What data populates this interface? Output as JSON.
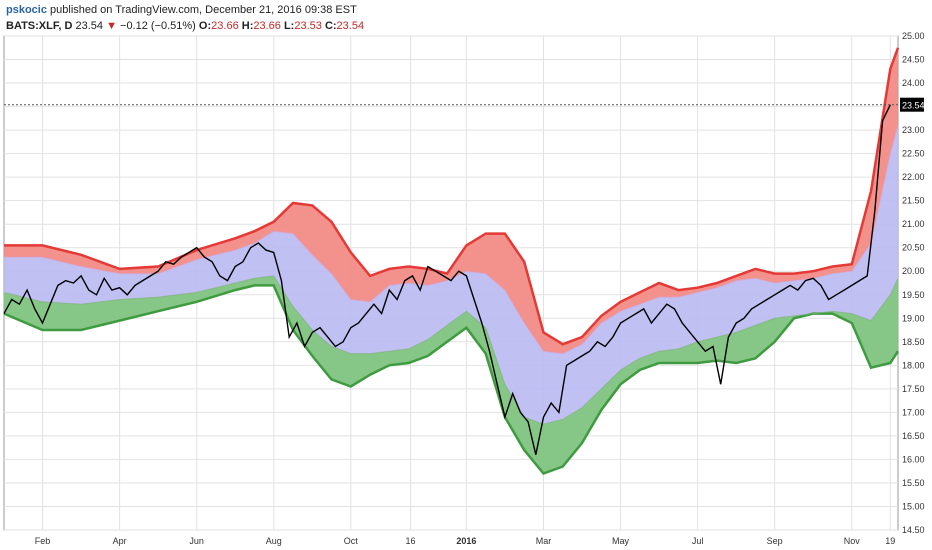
{
  "header": {
    "author": "pskocic",
    "published_text": "published on TradingView.com, December 21, 2016 09:38 EST",
    "symbol": "BATS:XLF, D",
    "last": "23.54",
    "change": "−0.12 (−0.51%)",
    "open_label": "O:",
    "open": "23.66",
    "high_label": "H:",
    "high": "23.66",
    "low_label": "L:",
    "low": "23.53",
    "close_label": "C:",
    "close": "23.54"
  },
  "colors": {
    "upper_band": "#e53935",
    "upper_fill": "#f28b87",
    "middle_fill": "#b9b9f2",
    "lower_fill": "#7fc37f",
    "lower_band": "#3f9b3f",
    "price": "#000000",
    "price_label_bg": "#000000"
  },
  "chart_data": {
    "type": "line",
    "title": "",
    "xlabel": "",
    "ylabel": "",
    "ylim": [
      14.5,
      25.0
    ],
    "yticks": [
      14.5,
      15.0,
      15.5,
      16.0,
      16.5,
      17.0,
      17.5,
      18.0,
      18.5,
      19.0,
      19.5,
      20.0,
      20.5,
      21.0,
      21.5,
      22.0,
      22.5,
      23.0,
      23.5,
      24.0,
      24.5,
      25.0
    ],
    "ytick_labels": [
      "14.50",
      "15.00",
      "15.50",
      "16.00",
      "16.50",
      "17.00",
      "17.50",
      "18.00",
      "18.50",
      "19.00",
      "19.50",
      "20.00",
      "20.50",
      "21.00",
      "21.50",
      "22.00",
      "22.50",
      "23.00",
      "23.50",
      "24.00",
      "24.50",
      "25.00"
    ],
    "x_range": [
      0,
      23.2
    ],
    "xticks": [
      {
        "x": 1.0,
        "label": "Feb",
        "bold": false
      },
      {
        "x": 3.0,
        "label": "Apr",
        "bold": false
      },
      {
        "x": 5.0,
        "label": "Jun",
        "bold": false
      },
      {
        "x": 7.0,
        "label": "Aug",
        "bold": false
      },
      {
        "x": 9.0,
        "label": "Oct",
        "bold": false
      },
      {
        "x": 10.55,
        "label": "16",
        "bold": false
      },
      {
        "x": 12.0,
        "label": "2016",
        "bold": true
      },
      {
        "x": 14.0,
        "label": "Mar",
        "bold": false
      },
      {
        "x": 16.0,
        "label": "May",
        "bold": false
      },
      {
        "x": 18.0,
        "label": "Jul",
        "bold": false
      },
      {
        "x": 20.0,
        "label": "Sep",
        "bold": false
      },
      {
        "x": 22.0,
        "label": "Nov",
        "bold": false
      },
      {
        "x": 23.0,
        "label": "19",
        "bold": false
      }
    ],
    "last_price": 23.54,
    "last_price_label": "23.54",
    "series": [
      {
        "key": "upper_outer",
        "x": [
          0,
          1,
          2,
          3,
          4,
          5,
          6,
          6.5,
          7,
          7.5,
          8,
          8.5,
          9,
          9.5,
          10,
          10.5,
          11,
          11.5,
          12,
          12.5,
          13,
          13.5,
          14,
          14.5,
          15,
          15.5,
          16,
          16.5,
          17,
          17.5,
          18,
          18.5,
          19,
          19.5,
          20,
          20.5,
          21,
          21.5,
          22,
          22.5,
          23,
          23.2
        ],
        "y": [
          20.55,
          20.55,
          20.35,
          20.05,
          20.1,
          20.45,
          20.7,
          20.85,
          21.05,
          21.45,
          21.4,
          21.05,
          20.4,
          19.9,
          20.05,
          20.1,
          20.05,
          19.95,
          20.55,
          20.8,
          20.8,
          20.2,
          18.7,
          18.45,
          18.6,
          19.05,
          19.35,
          19.55,
          19.75,
          19.6,
          19.65,
          19.75,
          19.9,
          20.05,
          19.95,
          19.95,
          20.0,
          20.1,
          20.15,
          21.7,
          24.3,
          24.75
        ]
      },
      {
        "key": "upper_inner",
        "x": [
          0,
          1,
          2,
          3,
          4,
          5,
          6,
          6.5,
          7,
          7.5,
          8,
          8.5,
          9,
          9.5,
          10,
          10.5,
          11,
          11.5,
          12,
          12.5,
          13,
          13.5,
          14,
          14.5,
          15,
          15.5,
          16,
          16.5,
          17,
          17.5,
          18,
          18.5,
          19,
          19.5,
          20,
          20.5,
          21,
          21.5,
          22,
          22.5,
          23,
          23.2
        ],
        "y": [
          20.3,
          20.3,
          20.1,
          19.95,
          19.95,
          20.25,
          20.45,
          20.6,
          20.85,
          20.8,
          20.35,
          19.95,
          19.4,
          19.35,
          19.7,
          19.75,
          19.7,
          19.8,
          20.0,
          19.95,
          19.6,
          18.9,
          18.3,
          18.25,
          18.45,
          18.9,
          19.15,
          19.3,
          19.45,
          19.45,
          19.55,
          19.65,
          19.8,
          19.85,
          19.75,
          19.8,
          19.85,
          19.95,
          20.0,
          20.6,
          22.5,
          23.1
        ]
      },
      {
        "key": "lower_inner",
        "x": [
          0,
          1,
          2,
          3,
          4,
          5,
          6,
          6.5,
          7,
          7.5,
          8,
          8.5,
          9,
          9.5,
          10,
          10.5,
          11,
          11.5,
          12,
          12.5,
          13,
          13.5,
          14,
          14.5,
          15,
          15.5,
          16,
          16.5,
          17,
          17.5,
          18,
          18.5,
          19,
          19.5,
          20,
          20.5,
          21,
          21.5,
          22,
          22.5,
          23,
          23.2
        ],
        "y": [
          19.55,
          19.35,
          19.3,
          19.4,
          19.45,
          19.55,
          19.75,
          19.85,
          19.9,
          19.25,
          18.75,
          18.4,
          18.25,
          18.25,
          18.3,
          18.35,
          18.55,
          18.85,
          19.15,
          18.8,
          17.6,
          16.9,
          16.75,
          16.85,
          17.1,
          17.5,
          17.9,
          18.15,
          18.3,
          18.35,
          18.5,
          18.6,
          18.7,
          18.85,
          19.0,
          19.05,
          19.1,
          19.15,
          19.1,
          18.95,
          19.5,
          19.85
        ]
      },
      {
        "key": "lower_outer",
        "x": [
          0,
          1,
          2,
          3,
          4,
          5,
          6,
          6.5,
          7,
          7.5,
          8,
          8.5,
          9,
          9.5,
          10,
          10.5,
          11,
          11.5,
          12,
          12.5,
          13,
          13.5,
          14,
          14.5,
          15,
          15.5,
          16,
          16.5,
          17,
          17.5,
          18,
          18.5,
          19,
          19.5,
          20,
          20.5,
          21,
          21.5,
          22,
          22.5,
          23,
          23.2
        ],
        "y": [
          19.1,
          18.75,
          18.75,
          18.95,
          19.15,
          19.35,
          19.6,
          19.7,
          19.7,
          18.75,
          18.2,
          17.7,
          17.55,
          17.8,
          18.0,
          18.05,
          18.2,
          18.5,
          18.8,
          18.25,
          16.9,
          16.2,
          15.7,
          15.85,
          16.35,
          17.05,
          17.6,
          17.9,
          18.05,
          18.05,
          18.05,
          18.1,
          18.05,
          18.15,
          18.5,
          19.0,
          19.1,
          19.1,
          18.9,
          17.95,
          18.05,
          18.3
        ]
      },
      {
        "key": "price",
        "x": [
          0,
          0.2,
          0.4,
          0.6,
          0.8,
          1.0,
          1.2,
          1.4,
          1.6,
          1.8,
          2.0,
          2.2,
          2.4,
          2.6,
          2.8,
          3.0,
          3.2,
          3.4,
          3.6,
          3.8,
          4.0,
          4.2,
          4.4,
          4.6,
          4.8,
          5.0,
          5.2,
          5.4,
          5.6,
          5.8,
          6.0,
          6.2,
          6.4,
          6.6,
          6.8,
          7.0,
          7.2,
          7.4,
          7.6,
          7.8,
          8.0,
          8.2,
          8.4,
          8.6,
          8.8,
          9.0,
          9.2,
          9.4,
          9.6,
          9.8,
          10.0,
          10.2,
          10.4,
          10.6,
          10.8,
          11.0,
          11.2,
          11.4,
          11.6,
          11.8,
          12.0,
          12.2,
          12.4,
          12.6,
          12.8,
          13.0,
          13.2,
          13.4,
          13.6,
          13.8,
          14.0,
          14.2,
          14.4,
          14.6,
          14.8,
          15.0,
          15.2,
          15.4,
          15.6,
          15.8,
          16.0,
          16.2,
          16.4,
          16.6,
          16.8,
          17.0,
          17.2,
          17.4,
          17.6,
          17.8,
          18.0,
          18.2,
          18.4,
          18.6,
          18.8,
          19.0,
          19.2,
          19.4,
          19.6,
          19.8,
          20.0,
          20.2,
          20.4,
          20.6,
          20.8,
          21.0,
          21.2,
          21.4,
          21.6,
          21.8,
          22.0,
          22.2,
          22.4,
          22.6,
          22.8,
          23.0
        ],
        "y": [
          19.1,
          19.4,
          19.3,
          19.6,
          19.2,
          18.9,
          19.3,
          19.7,
          19.8,
          19.75,
          19.9,
          19.6,
          19.5,
          19.85,
          19.6,
          19.65,
          19.5,
          19.7,
          19.8,
          19.9,
          20.0,
          20.2,
          20.15,
          20.3,
          20.4,
          20.5,
          20.3,
          20.2,
          19.9,
          19.8,
          20.1,
          20.2,
          20.5,
          20.6,
          20.45,
          20.4,
          19.8,
          18.6,
          18.9,
          18.4,
          18.7,
          18.8,
          18.6,
          18.4,
          18.5,
          18.8,
          18.9,
          19.1,
          19.3,
          19.1,
          19.6,
          19.4,
          19.8,
          19.9,
          19.6,
          20.1,
          20.0,
          19.9,
          19.8,
          20.0,
          19.9,
          19.4,
          18.9,
          18.3,
          17.6,
          16.9,
          17.4,
          17.0,
          16.8,
          16.1,
          16.9,
          17.2,
          17.0,
          18.0,
          18.1,
          18.2,
          18.3,
          18.5,
          18.4,
          18.6,
          18.9,
          19.0,
          19.1,
          19.2,
          18.9,
          19.1,
          19.3,
          19.2,
          18.9,
          18.7,
          18.5,
          18.3,
          18.4,
          17.6,
          18.6,
          18.9,
          19.0,
          19.2,
          19.3,
          19.4,
          19.5,
          19.6,
          19.7,
          19.6,
          19.8,
          19.85,
          19.7,
          19.4,
          19.5,
          19.6,
          19.7,
          19.8,
          19.9,
          21.3,
          23.2,
          23.54
        ]
      }
    ]
  }
}
